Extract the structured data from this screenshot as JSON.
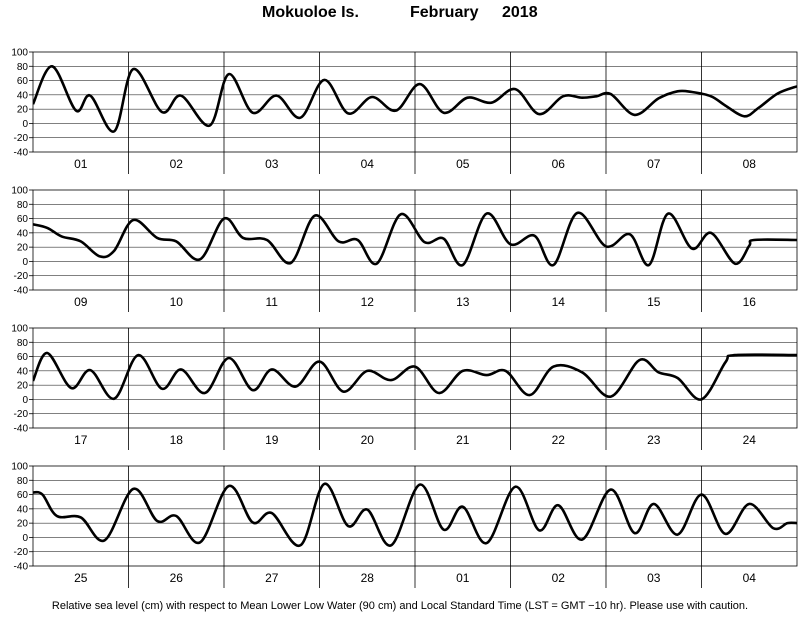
{
  "title": {
    "location": "Mokuoloe Is.",
    "month": "February",
    "year": "2018"
  },
  "footer": "Relative sea level (cm) with respect to Mean Lower Low Water (90 cm) and Local Standard Time (LST = GMT −10 hr). Please use with caution.",
  "chart_data": {
    "type": "line",
    "ylim": [
      -40,
      100
    ],
    "yticks": [
      -40,
      -20,
      0,
      20,
      40,
      60,
      80,
      100
    ],
    "units": "cm",
    "grid": "vertical day separators",
    "panels": [
      {
        "days": [
          "01",
          "02",
          "03",
          "04",
          "05",
          "06",
          "07",
          "08"
        ],
        "points": [
          [
            0,
            27
          ],
          [
            0.2,
            80
          ],
          [
            0.45,
            18
          ],
          [
            0.6,
            39
          ],
          [
            0.85,
            -11
          ],
          [
            1.05,
            76
          ],
          [
            1.35,
            16
          ],
          [
            1.55,
            39
          ],
          [
            1.85,
            -3
          ],
          [
            2.05,
            69
          ],
          [
            2.3,
            15
          ],
          [
            2.55,
            39
          ],
          [
            2.8,
            8
          ],
          [
            3.05,
            61
          ],
          [
            3.3,
            14
          ],
          [
            3.55,
            37
          ],
          [
            3.8,
            18
          ],
          [
            4.05,
            55
          ],
          [
            4.3,
            15
          ],
          [
            4.55,
            36
          ],
          [
            4.8,
            29
          ],
          [
            5.05,
            48
          ],
          [
            5.3,
            13
          ],
          [
            5.55,
            38
          ],
          [
            5.75,
            36
          ],
          [
            5.9,
            38
          ],
          [
            6.05,
            41
          ],
          [
            6.3,
            12
          ],
          [
            6.55,
            35
          ],
          [
            6.75,
            45
          ],
          [
            6.9,
            44
          ],
          [
            7.1,
            38
          ],
          [
            7.25,
            25
          ],
          [
            7.45,
            10
          ],
          [
            7.6,
            22
          ],
          [
            7.8,
            42
          ],
          [
            8,
            52
          ]
        ]
      },
      {
        "days": [
          "09",
          "10",
          "11",
          "12",
          "13",
          "14",
          "15",
          "16"
        ],
        "points": [
          [
            0,
            52
          ],
          [
            0.15,
            47
          ],
          [
            0.3,
            35
          ],
          [
            0.5,
            28
          ],
          [
            0.7,
            7
          ],
          [
            0.85,
            15
          ],
          [
            1.05,
            58
          ],
          [
            1.3,
            33
          ],
          [
            1.5,
            28
          ],
          [
            1.75,
            3
          ],
          [
            2.0,
            60
          ],
          [
            2.2,
            33
          ],
          [
            2.45,
            30
          ],
          [
            2.7,
            -2
          ],
          [
            2.95,
            64
          ],
          [
            3.2,
            28
          ],
          [
            3.4,
            30
          ],
          [
            3.6,
            -3
          ],
          [
            3.85,
            66
          ],
          [
            4.1,
            27
          ],
          [
            4.3,
            32
          ],
          [
            4.5,
            -5
          ],
          [
            4.75,
            67
          ],
          [
            5.0,
            24
          ],
          [
            5.25,
            36
          ],
          [
            5.45,
            -5
          ],
          [
            5.7,
            68
          ],
          [
            6.0,
            21
          ],
          [
            6.25,
            38
          ],
          [
            6.45,
            -5
          ],
          [
            6.65,
            67
          ],
          [
            6.9,
            18
          ],
          [
            7.1,
            40
          ],
          [
            7.35,
            -3
          ],
          [
            7.5,
            22
          ],
          [
            7.55,
            30
          ],
          [
            8,
            30
          ]
        ]
      },
      {
        "days": [
          "17",
          "18",
          "19",
          "20",
          "21",
          "22",
          "23",
          "24"
        ],
        "points": [
          [
            0,
            26
          ],
          [
            0.15,
            65
          ],
          [
            0.4,
            16
          ],
          [
            0.6,
            41
          ],
          [
            0.85,
            1
          ],
          [
            1.1,
            62
          ],
          [
            1.35,
            15
          ],
          [
            1.55,
            42
          ],
          [
            1.8,
            9
          ],
          [
            2.05,
            58
          ],
          [
            2.3,
            13
          ],
          [
            2.5,
            42
          ],
          [
            2.75,
            18
          ],
          [
            3.0,
            53
          ],
          [
            3.25,
            11
          ],
          [
            3.5,
            40
          ],
          [
            3.75,
            27
          ],
          [
            4.0,
            46
          ],
          [
            4.25,
            9
          ],
          [
            4.5,
            40
          ],
          [
            4.75,
            34
          ],
          [
            4.95,
            40
          ],
          [
            5.2,
            6
          ],
          [
            5.45,
            46
          ],
          [
            5.75,
            38
          ],
          [
            6.05,
            4
          ],
          [
            6.35,
            55
          ],
          [
            6.55,
            38
          ],
          [
            6.75,
            30
          ],
          [
            7.0,
            0
          ],
          [
            7.25,
            52
          ],
          [
            7.35,
            62
          ],
          [
            8,
            62
          ]
        ]
      },
      {
        "days": [
          "25",
          "26",
          "27",
          "28",
          "01",
          "02",
          "03",
          "04"
        ],
        "points": [
          [
            0,
            63
          ],
          [
            0.1,
            60
          ],
          [
            0.25,
            30
          ],
          [
            0.5,
            28
          ],
          [
            0.75,
            -4
          ],
          [
            1.05,
            68
          ],
          [
            1.3,
            23
          ],
          [
            1.5,
            30
          ],
          [
            1.75,
            -7
          ],
          [
            2.05,
            72
          ],
          [
            2.3,
            21
          ],
          [
            2.5,
            34
          ],
          [
            2.8,
            -11
          ],
          [
            3.05,
            75
          ],
          [
            3.3,
            16
          ],
          [
            3.5,
            39
          ],
          [
            3.75,
            -11
          ],
          [
            4.05,
            74
          ],
          [
            4.3,
            11
          ],
          [
            4.5,
            43
          ],
          [
            4.75,
            -8
          ],
          [
            5.05,
            71
          ],
          [
            5.3,
            10
          ],
          [
            5.5,
            45
          ],
          [
            5.75,
            -3
          ],
          [
            6.05,
            67
          ],
          [
            6.3,
            6
          ],
          [
            6.5,
            47
          ],
          [
            6.75,
            4
          ],
          [
            7.0,
            60
          ],
          [
            7.25,
            5
          ],
          [
            7.5,
            47
          ],
          [
            7.75,
            13
          ],
          [
            7.9,
            20
          ],
          [
            8,
            20
          ]
        ]
      }
    ]
  }
}
